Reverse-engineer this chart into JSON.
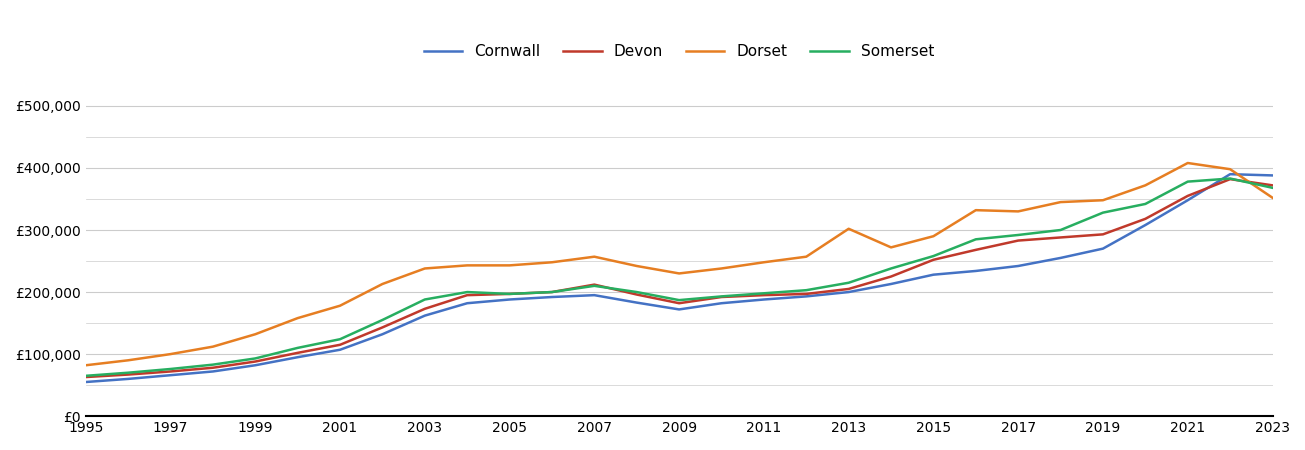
{
  "years": [
    1995,
    1996,
    1997,
    1998,
    1999,
    2000,
    2001,
    2002,
    2003,
    2004,
    2005,
    2006,
    2007,
    2008,
    2009,
    2010,
    2011,
    2012,
    2013,
    2014,
    2015,
    2016,
    2017,
    2018,
    2019,
    2020,
    2021,
    2022,
    2023
  ],
  "Cornwall": [
    55000,
    60000,
    66000,
    72000,
    82000,
    95000,
    107000,
    132000,
    162000,
    182000,
    188000,
    192000,
    195000,
    183000,
    172000,
    182000,
    188000,
    193000,
    200000,
    213000,
    228000,
    234000,
    242000,
    255000,
    270000,
    308000,
    348000,
    390000,
    388000
  ],
  "Devon": [
    63000,
    67000,
    72000,
    78000,
    88000,
    102000,
    115000,
    143000,
    173000,
    195000,
    197000,
    200000,
    212000,
    196000,
    182000,
    192000,
    195000,
    197000,
    205000,
    225000,
    252000,
    268000,
    283000,
    288000,
    293000,
    318000,
    355000,
    382000,
    372000
  ],
  "Dorset": [
    82000,
    90000,
    100000,
    112000,
    132000,
    158000,
    178000,
    213000,
    238000,
    243000,
    243000,
    248000,
    257000,
    242000,
    230000,
    238000,
    248000,
    257000,
    302000,
    272000,
    290000,
    332000,
    330000,
    345000,
    348000,
    372000,
    408000,
    398000,
    352000
  ],
  "Somerset": [
    65000,
    70000,
    76000,
    83000,
    93000,
    110000,
    124000,
    155000,
    188000,
    200000,
    197000,
    200000,
    210000,
    200000,
    187000,
    193000,
    198000,
    203000,
    215000,
    238000,
    258000,
    285000,
    292000,
    300000,
    328000,
    342000,
    378000,
    383000,
    368000
  ],
  "colors": {
    "Cornwall": "#4472c4",
    "Devon": "#c0392b",
    "Dorset": "#e67e22",
    "Somerset": "#27ae60"
  },
  "ylim": [
    0,
    550000
  ],
  "ytick_major": [
    0,
    100000,
    200000,
    300000,
    400000,
    500000
  ],
  "ytick_minor": [
    50000,
    150000,
    250000,
    350000,
    450000
  ],
  "xlim_min": 1995,
  "xlim_max": 2023,
  "xticks": [
    1995,
    1997,
    1999,
    2001,
    2003,
    2005,
    2007,
    2009,
    2011,
    2013,
    2015,
    2017,
    2019,
    2021,
    2023
  ],
  "background_color": "#ffffff",
  "grid_color": "#cccccc",
  "legend_loc": "upper center",
  "legend_ncol": 4,
  "figsize": [
    13.05,
    4.5
  ],
  "dpi": 100
}
